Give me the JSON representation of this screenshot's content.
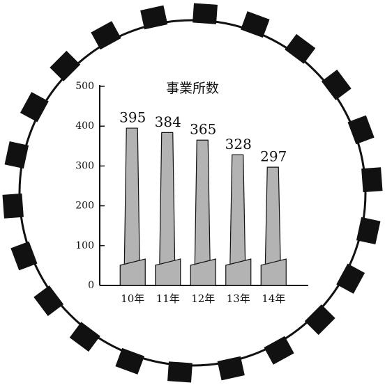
{
  "chart_data": {
    "type": "chimney-bar",
    "title": "事業所数",
    "categories": [
      "10年",
      "11年",
      "12年",
      "13年",
      "14年"
    ],
    "values": [
      395,
      384,
      365,
      328,
      297
    ],
    "color": "#b3b3b3",
    "ylim": [
      0,
      500
    ],
    "yticks": [
      0,
      100,
      200,
      300,
      400,
      500
    ]
  }
}
